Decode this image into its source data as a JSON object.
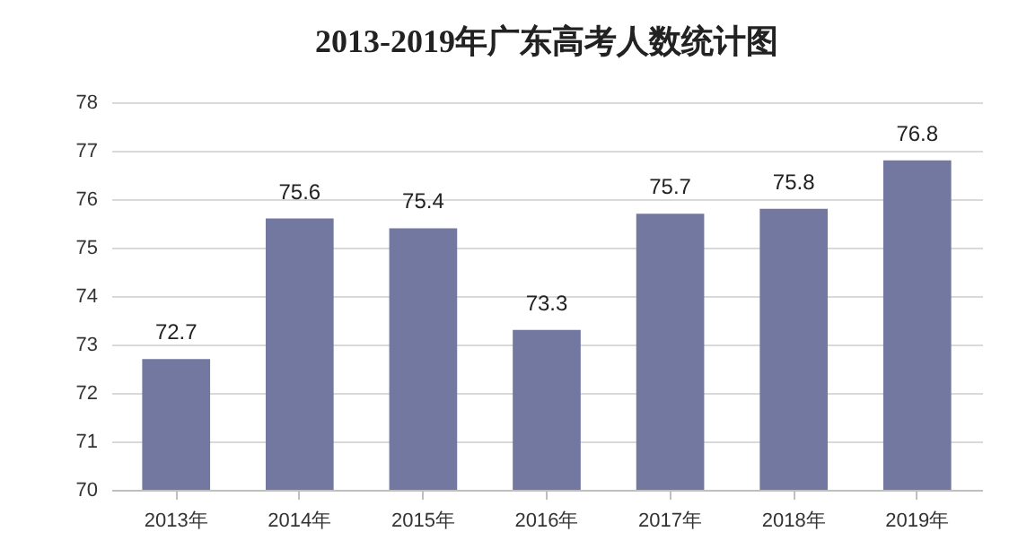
{
  "chart_data": {
    "type": "bar",
    "title": "2013-2019年广东高考人数统计图",
    "categories": [
      "2013年",
      "2014年",
      "2015年",
      "2016年",
      "2017年",
      "2018年",
      "2019年"
    ],
    "values": [
      72.7,
      75.6,
      75.4,
      73.3,
      75.7,
      75.8,
      76.8
    ],
    "color": "#7378a1",
    "ylim": [
      70,
      78
    ],
    "yticks": [
      70,
      71,
      72,
      73,
      74,
      75,
      76,
      77,
      78
    ],
    "grid": "y",
    "data_labels": true
  }
}
